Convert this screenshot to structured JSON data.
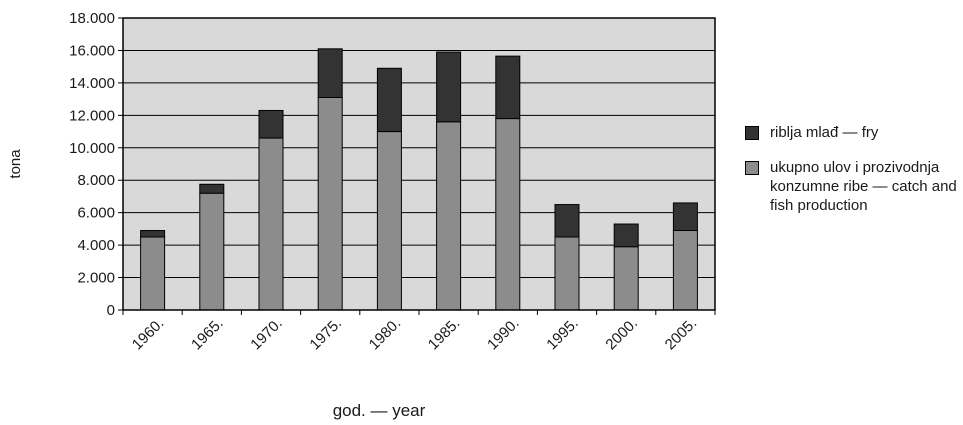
{
  "chart_data": {
    "type": "bar",
    "stacked": true,
    "categories": [
      "1960.",
      "1965.",
      "1970.",
      "1975.",
      "1980.",
      "1985.",
      "1990.",
      "1995.",
      "2000.",
      "2005."
    ],
    "series": [
      {
        "name": "ukupno ulov i prozivodnja konzumne ribe — catch and fish production",
        "color": "#8c8c8c",
        "values": [
          4500,
          7200,
          10600,
          13100,
          11000,
          11600,
          11800,
          4500,
          3900,
          4900
        ]
      },
      {
        "name": "riblja mlađ — fry",
        "color": "#333333",
        "values": [
          400,
          550,
          1700,
          3000,
          3900,
          4300,
          3850,
          2000,
          1400,
          1700
        ]
      }
    ],
    "xlabel": "god. — year",
    "ylabel": "tona",
    "ylim": [
      0,
      18000
    ],
    "yticks": [
      "0",
      "2.000",
      "4.000",
      "6.000",
      "8.000",
      "10.000",
      "12.000",
      "14.000",
      "16.000",
      "18.000"
    ],
    "grid": true,
    "plot_background": "#d9d9d9",
    "legend_position": "right"
  }
}
